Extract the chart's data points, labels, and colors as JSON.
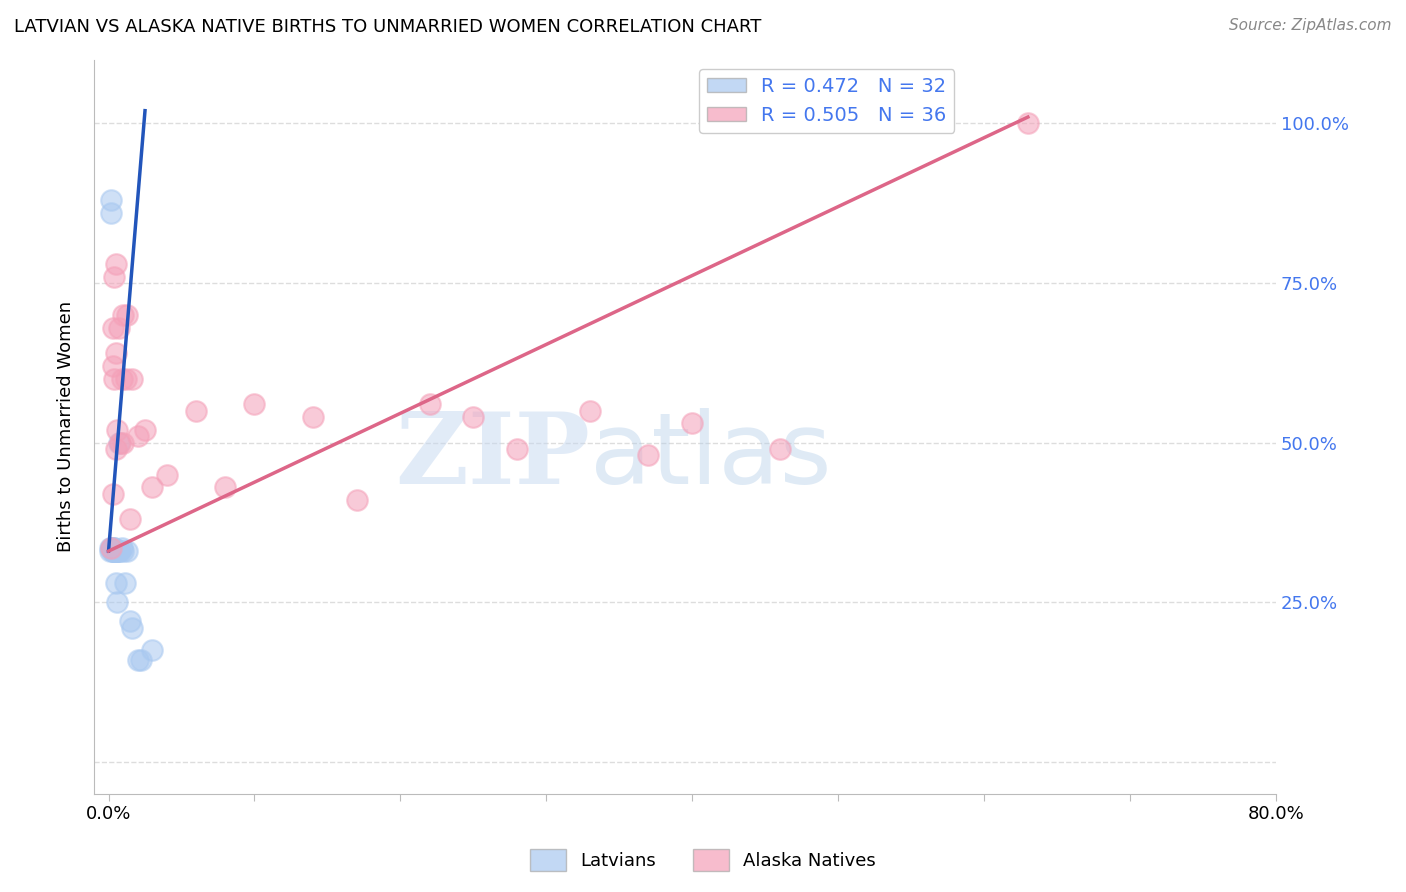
{
  "title": "LATVIAN VS ALASKA NATIVE BIRTHS TO UNMARRIED WOMEN CORRELATION CHART",
  "source": "Source: ZipAtlas.com",
  "ylabel": "Births to Unmarried Women",
  "watermark_zip": "ZIP",
  "watermark_atlas": "atlas",
  "latvian_R": 0.472,
  "latvian_N": 32,
  "alaska_R": 0.505,
  "alaska_N": 36,
  "x_tick_positions": [
    0.0,
    0.1,
    0.2,
    0.3,
    0.4,
    0.5,
    0.6,
    0.7,
    0.8
  ],
  "x_tick_labels": [
    "0.0%",
    "",
    "",
    "",
    "",
    "",
    "",
    "",
    "80.0%"
  ],
  "y_tick_positions": [
    0.0,
    0.25,
    0.5,
    0.75,
    1.0
  ],
  "y_tick_labels_right": [
    "",
    "25.0%",
    "50.0%",
    "75.0%",
    "100.0%"
  ],
  "latvian_x": [
    0.001,
    0.001,
    0.002,
    0.002,
    0.002,
    0.003,
    0.003,
    0.003,
    0.003,
    0.004,
    0.004,
    0.004,
    0.004,
    0.005,
    0.005,
    0.005,
    0.005,
    0.006,
    0.006,
    0.006,
    0.007,
    0.007,
    0.008,
    0.009,
    0.01,
    0.011,
    0.013,
    0.015,
    0.016,
    0.02,
    0.022,
    0.03
  ],
  "latvian_y": [
    0.335,
    0.33,
    0.86,
    0.88,
    0.335,
    0.33,
    0.33,
    0.33,
    0.335,
    0.335,
    0.33,
    0.335,
    0.33,
    0.33,
    0.33,
    0.28,
    0.33,
    0.33,
    0.33,
    0.25,
    0.5,
    0.33,
    0.33,
    0.335,
    0.33,
    0.28,
    0.33,
    0.22,
    0.21,
    0.16,
    0.16,
    0.175
  ],
  "alaska_x": [
    0.002,
    0.003,
    0.003,
    0.003,
    0.004,
    0.004,
    0.005,
    0.005,
    0.005,
    0.006,
    0.007,
    0.008,
    0.009,
    0.01,
    0.01,
    0.012,
    0.013,
    0.015,
    0.016,
    0.02,
    0.025,
    0.03,
    0.04,
    0.06,
    0.08,
    0.1,
    0.14,
    0.17,
    0.22,
    0.25,
    0.28,
    0.33,
    0.37,
    0.4,
    0.46,
    0.63
  ],
  "alaska_y": [
    0.335,
    0.68,
    0.62,
    0.42,
    0.76,
    0.6,
    0.78,
    0.64,
    0.49,
    0.52,
    0.68,
    0.5,
    0.6,
    0.5,
    0.7,
    0.6,
    0.7,
    0.38,
    0.6,
    0.51,
    0.52,
    0.43,
    0.45,
    0.55,
    0.43,
    0.56,
    0.54,
    0.41,
    0.56,
    0.54,
    0.49,
    0.55,
    0.48,
    0.53,
    0.49,
    1.0
  ],
  "latvian_color": "#A8C8F0",
  "alaska_color": "#F4A0B8",
  "latvian_line_color": "#2255BB",
  "alaska_line_color": "#DD6688",
  "background_color": "#FFFFFF",
  "grid_color": "#DDDDDD",
  "right_tick_color": "#4477EE",
  "xlim": [
    -0.01,
    0.8
  ],
  "ylim": [
    -0.05,
    1.1
  ]
}
